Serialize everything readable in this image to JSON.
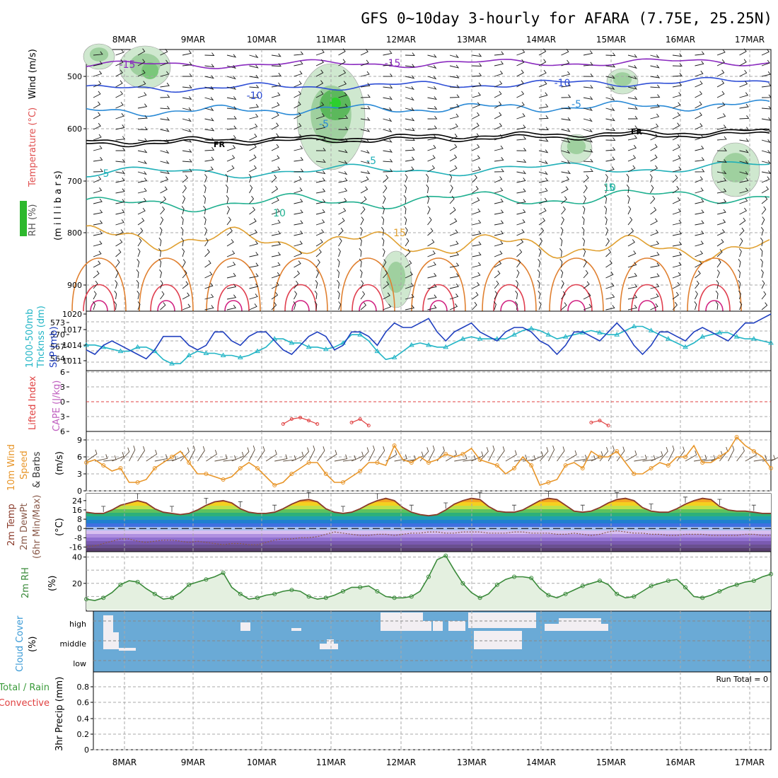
{
  "title": "GFS 0~10day 3-hourly for AFARA (7.75E, 25.25N)",
  "dates": [
    "8MAR",
    "9MAR",
    "10MAR",
    "11MAR",
    "12MAR",
    "13MAR",
    "14MAR",
    "15MAR",
    "16MAR",
    "17MAR"
  ],
  "colors": {
    "rh_shade": "#2db82d",
    "wind_barb": "#1a1a1a",
    "freezing": "#000000",
    "slp": "#1f3fbf",
    "thickness": "#22b5c6",
    "lifted_index": "#e04040",
    "wind_speed": "#e8962a",
    "temp_line": "#8a3a2a",
    "dewpt_line": "#8a5a4a",
    "rh2m": "#3a8a3a",
    "cloud_bg": "#6aaad6",
    "cloud_fill": "#f2eef2"
  },
  "panels": {
    "upper": {
      "ylabels": [
        "RH (%)",
        "Temperature (°C)",
        "Wind (m/s)",
        "(m i l l i b a r s)"
      ],
      "yticks": [
        "500",
        "600",
        "700",
        "800",
        "900"
      ],
      "freezing_label": "FR",
      "contour_labels": [
        "-15",
        "-15",
        "-10",
        "-10",
        "-5",
        "-5",
        "-5",
        "5",
        "5",
        "10",
        "10",
        "15"
      ]
    },
    "slp": {
      "ylabels": [
        "1000-500mb",
        "Thcknss (dm)",
        "SLP (mb)"
      ],
      "left_ticks": [
        "573",
        "570",
        "567",
        "564"
      ],
      "right_ticks": [
        "1020",
        "1017",
        "1014",
        "1011"
      ]
    },
    "cape": {
      "ylabels": [
        "Lifted Index",
        "CAPE (J/kg)"
      ],
      "yticks": [
        "6",
        "3",
        "0",
        "3",
        "6"
      ]
    },
    "wind10m": {
      "ylabels": [
        "10m Wind",
        "Speed",
        "& Barbs",
        "(m/s)"
      ],
      "yticks": [
        "9",
        "6",
        "3",
        "0"
      ]
    },
    "temp2m": {
      "ylabels": [
        "2m Temp",
        "2m DewPt",
        "(6hr Min/Max)",
        "(°C)"
      ],
      "yticks": [
        "24",
        "16",
        "8",
        "0",
        "-8",
        "-16"
      ]
    },
    "rh2m": {
      "ylabels": [
        "2m RH",
        "(%)"
      ],
      "yticks": [
        "40",
        "20"
      ]
    },
    "cloud": {
      "ylabels": [
        "Cloud Cover",
        "(%)"
      ],
      "levels": [
        "high",
        "middle",
        "low"
      ]
    },
    "precip": {
      "ylabels": [
        "Total / Rain",
        "Convective",
        "3hr Precip (mm)"
      ],
      "yticks": [
        "0.8",
        "0.6",
        "0.4",
        "0.2",
        "0"
      ],
      "run_total": "Run Total = 0"
    }
  },
  "chart_data": [
    {
      "type": "line",
      "name": "SLP (mb)",
      "ylim": [
        1008,
        1020
      ],
      "values": [
        1012,
        1011,
        1013,
        1014,
        1013,
        1012,
        1011,
        1010,
        1012,
        1015,
        1015,
        1015,
        1013,
        1012,
        1013,
        1016,
        1016,
        1014,
        1013,
        1015,
        1016,
        1016,
        1014,
        1012,
        1011,
        1013,
        1015,
        1016,
        1015,
        1012,
        1013,
        1016,
        1016,
        1015,
        1013,
        1016,
        1018,
        1017,
        1017,
        1018,
        1019,
        1016,
        1014,
        1016,
        1017,
        1018,
        1016,
        1015,
        1014,
        1016,
        1017,
        1017,
        1016,
        1014,
        1013,
        1011,
        1013,
        1016,
        1016,
        1015,
        1014,
        1016,
        1018,
        1016,
        1013,
        1011,
        1013,
        1016,
        1016,
        1015,
        1014,
        1016,
        1017,
        1016,
        1015,
        1014,
        1016,
        1018,
        1018,
        1019,
        1020
      ]
    },
    {
      "type": "line",
      "name": "1000-500mb Thickness (dm)",
      "ylim": [
        562,
        575
      ],
      "values": [
        567.5,
        567.5,
        567,
        566.5,
        566,
        566,
        567,
        567,
        566,
        564,
        563,
        563,
        565,
        566,
        565.5,
        565.5,
        565,
        565,
        564.5,
        565,
        566,
        567,
        569,
        569,
        568,
        568,
        567,
        567,
        566.5,
        567,
        568,
        570,
        570,
        568.5,
        566,
        564,
        564.5,
        566,
        567.5,
        568,
        567.5,
        567,
        567,
        568,
        569,
        569.5,
        569,
        569,
        569,
        569,
        570,
        571,
        571.5,
        571,
        570,
        569,
        569.5,
        570,
        570.5,
        571,
        570.5,
        570,
        570,
        571,
        572,
        572,
        571,
        570,
        569,
        568,
        567,
        568,
        569.5,
        570,
        570.5,
        570.5,
        569.5,
        569,
        569,
        568.5,
        568
      ]
    },
    {
      "type": "line",
      "name": "Lifted Index",
      "ylim": [
        6,
        -6
      ],
      "values": [
        6,
        6,
        6,
        6,
        6,
        6,
        6,
        6,
        6,
        6,
        6,
        6,
        6,
        6,
        6,
        6,
        6,
        6,
        6,
        6,
        6,
        6,
        6,
        4.5,
        3.5,
        3.2,
        3.8,
        4.5,
        6,
        6,
        6,
        4.2,
        3.5,
        4.8,
        6,
        6,
        6,
        6,
        6,
        6,
        6,
        6,
        6,
        6,
        6,
        6,
        6,
        6,
        6,
        6,
        6,
        6,
        6,
        6,
        6,
        6,
        6,
        6,
        6,
        4.2,
        3.8,
        4.8,
        6,
        6,
        6,
        6,
        6,
        6,
        6,
        6,
        6,
        6,
        6,
        6,
        6,
        6,
        6,
        6,
        6,
        6,
        6
      ]
    },
    {
      "type": "line",
      "name": "10m Wind Speed (m/s)",
      "ylim": [
        0,
        10.5
      ],
      "values": [
        5,
        5.5,
        4.5,
        3.5,
        4,
        1.5,
        1.5,
        2,
        4,
        5,
        6,
        7,
        5,
        3,
        3,
        2.5,
        2,
        2.5,
        4,
        5,
        4,
        2.5,
        1,
        1.5,
        3,
        4,
        5,
        5,
        3,
        1.5,
        1.5,
        2.5,
        3.5,
        5,
        5,
        4.5,
        8,
        5.5,
        5,
        6,
        5,
        5.5,
        6.5,
        6,
        6.5,
        7.5,
        5.5,
        5,
        4.5,
        3,
        4,
        6,
        4.5,
        1,
        1.5,
        2,
        4.5,
        5,
        4,
        7,
        6,
        6,
        7,
        5,
        3,
        3,
        4,
        5,
        4.5,
        6,
        6,
        8,
        5,
        5,
        6,
        7,
        9.5,
        8,
        7,
        6,
        4
      ]
    },
    {
      "type": "area",
      "name": "2m Temp (°C)",
      "ylim": [
        -20,
        30
      ],
      "values": [
        14,
        13,
        13,
        16,
        20,
        22,
        24,
        22,
        17,
        14,
        13,
        12,
        13,
        16,
        20,
        23,
        24,
        22,
        17,
        14,
        13,
        13,
        14,
        17,
        21,
        24,
        25,
        23,
        17,
        14,
        13,
        14,
        17,
        21,
        24,
        26,
        24,
        18,
        14,
        12,
        11,
        12,
        16,
        21,
        24,
        26,
        25,
        19,
        15,
        14,
        14,
        16,
        20,
        24,
        26,
        25,
        20,
        15,
        14,
        15,
        18,
        22,
        25,
        26,
        24,
        18,
        15,
        14,
        14,
        17,
        21,
        24,
        26,
        25,
        19,
        16,
        15,
        15,
        14,
        13,
        13
      ]
    },
    {
      "type": "line",
      "name": "2m DewPt (°C)",
      "ylim": [
        -20,
        30
      ],
      "values": [
        -16,
        -15,
        -13,
        -11,
        -9,
        -9,
        -11,
        -12,
        -11,
        -10,
        -10,
        -11,
        -12,
        -11,
        -12,
        -13,
        -14,
        -13,
        -13,
        -14,
        -14,
        -12,
        -10,
        -9,
        -9,
        -8,
        -8,
        -7,
        -5,
        -3,
        -4,
        -5,
        -6,
        -6,
        -5,
        -5,
        -6,
        -5,
        -4,
        -4,
        -3,
        -3,
        -4,
        -4,
        -3,
        -3,
        -3,
        -4,
        -4,
        -4,
        -3,
        -3,
        -4,
        -4,
        -4,
        -5,
        -5,
        -4,
        -5,
        -6,
        -5,
        -3,
        -2,
        -3,
        -4,
        -4,
        -5,
        -5,
        -6,
        -6,
        -5,
        -5,
        -5,
        -6,
        -6,
        -6,
        -6,
        -5,
        -5,
        -6,
        -6
      ]
    },
    {
      "type": "area",
      "name": "2m RH (%)",
      "ylim": [
        0,
        43
      ],
      "values": [
        8,
        7,
        9,
        13,
        19,
        22,
        21,
        16,
        12,
        8,
        9,
        13,
        19,
        21,
        23,
        25,
        28,
        17,
        12,
        8,
        9,
        11,
        12,
        14,
        15,
        14,
        10,
        8,
        9,
        11,
        14,
        17,
        17,
        18,
        14,
        10,
        9,
        9,
        10,
        14,
        25,
        38,
        41,
        30,
        20,
        13,
        9,
        12,
        19,
        23,
        25,
        25,
        24,
        16,
        11,
        9,
        12,
        15,
        18,
        20,
        22,
        19,
        12,
        9,
        10,
        14,
        18,
        20,
        22,
        23,
        17,
        10,
        9,
        11,
        14,
        17,
        19,
        21,
        22,
        25,
        27
      ]
    }
  ]
}
